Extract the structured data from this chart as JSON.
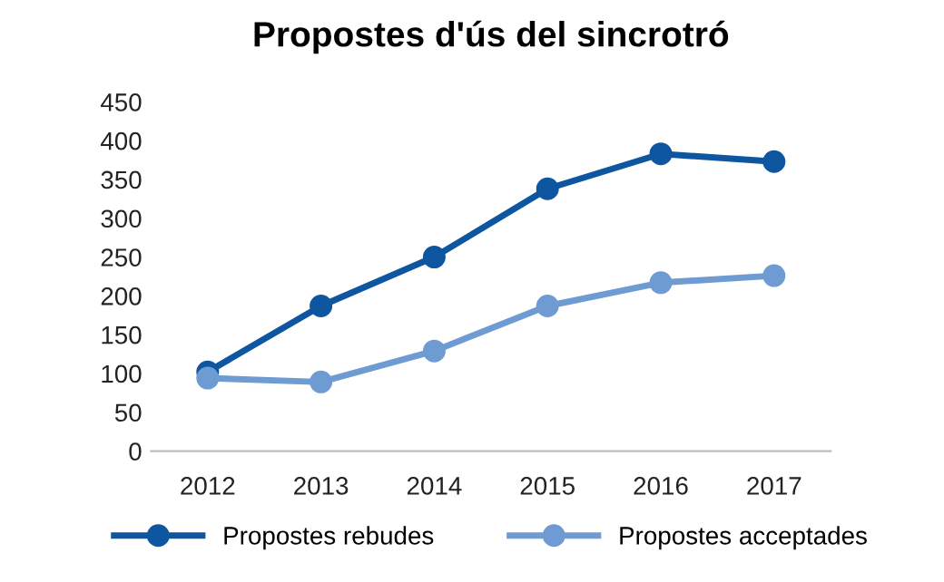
{
  "chart_data": {
    "type": "line",
    "title": "Propostes d'ús del sincrotró",
    "categories": [
      "2012",
      "2013",
      "2014",
      "2015",
      "2016",
      "2017"
    ],
    "series": [
      {
        "name": "Propostes rebudes",
        "color": "#0e56a0",
        "values": [
          102,
          187,
          250,
          338,
          383,
          373
        ]
      },
      {
        "name": "Propostes acceptades",
        "color": "#6f9bd3",
        "values": [
          94,
          89,
          129,
          187,
          217,
          226
        ]
      }
    ],
    "ylim": [
      0,
      450
    ],
    "yticks": [
      0,
      50,
      100,
      150,
      200,
      250,
      300,
      350,
      400,
      450
    ],
    "grid": false,
    "legend": "bottom",
    "marker": "circle",
    "line_style": "solid"
  }
}
